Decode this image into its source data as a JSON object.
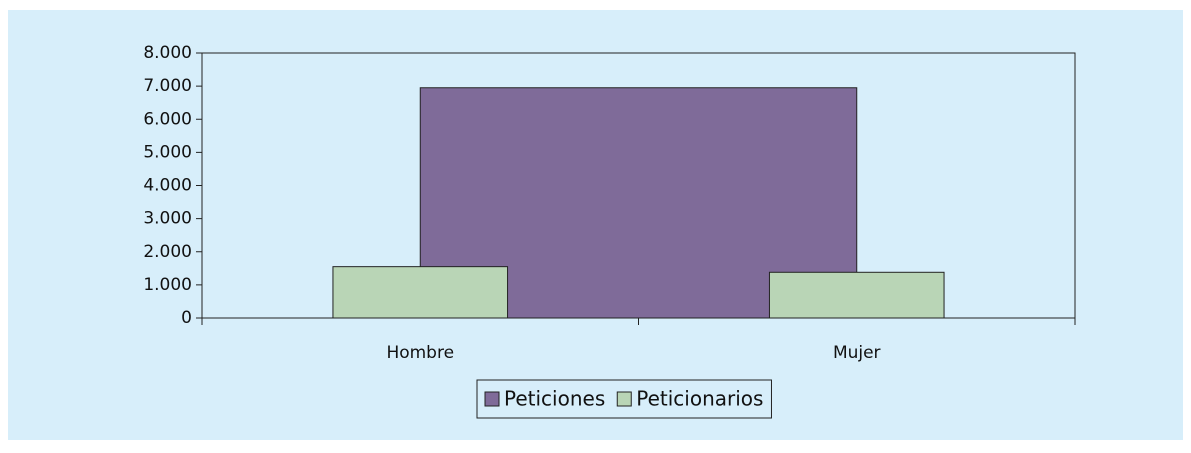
{
  "chart_data": {
    "type": "bar",
    "categories": [
      "Hombre",
      "Mujer"
    ],
    "series": [
      {
        "name": "Peticiones",
        "type": "area",
        "color": "#7f6b99",
        "values": [
          6950,
          6950
        ]
      },
      {
        "name": "Peticionarios",
        "type": "bar",
        "color": "#b9d5b6",
        "values": [
          1550,
          1380
        ]
      }
    ],
    "ylim": [
      0,
      8000
    ],
    "yticks": [
      0,
      {
        "value": 1000,
        "label": "1.000"
      },
      {
        "value": 2000,
        "label": "2.000"
      },
      {
        "value": 3000,
        "label": "3.000"
      },
      {
        "value": 4000,
        "label": "4.000"
      },
      {
        "value": 5000,
        "label": "5.000"
      },
      {
        "value": 6000,
        "label": "6.000"
      },
      {
        "value": 7000,
        "label": "7.000"
      },
      {
        "value": 8000,
        "label": "8.000"
      }
    ],
    "legend": "bottom"
  }
}
